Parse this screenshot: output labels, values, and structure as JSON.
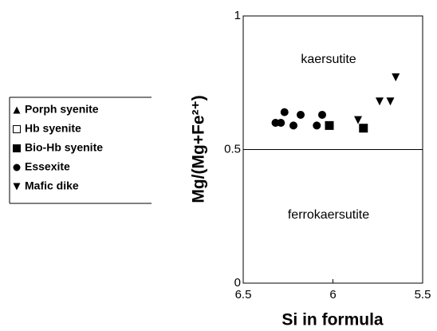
{
  "chart_data": {
    "type": "scatter",
    "xlabel": "Si in formula",
    "ylabel": "Mg/(Mg+Fe²⁺)",
    "annotations": [
      "kaersutite",
      "ferrokaersutite"
    ],
    "reference_line": 0.5,
    "xlim": [
      6.5,
      5.5
    ],
    "xticks": [
      6.5,
      6,
      5.5
    ],
    "ylim": [
      0,
      1
    ],
    "yticks": [
      0,
      0.5,
      1
    ],
    "series": [
      {
        "name": "Porph syenite",
        "color": "#000000",
        "marker": "triangle-up",
        "x": [],
        "y": []
      },
      {
        "name": "Hb syenite",
        "color": "#000000",
        "marker": "square-open",
        "x": [],
        "y": []
      },
      {
        "name": "Bio-Hb syenite",
        "color": "#000000",
        "marker": "square",
        "x": [
          6.02,
          5.83
        ],
        "y": [
          0.59,
          0.58
        ]
      },
      {
        "name": "Essexite",
        "color": "#000000",
        "marker": "circle",
        "x": [
          6.32,
          6.29,
          6.27,
          6.22,
          6.18,
          6.09,
          6.06
        ],
        "y": [
          0.6,
          0.6,
          0.64,
          0.59,
          0.63,
          0.59,
          0.63
        ]
      },
      {
        "name": "Mafic dike",
        "color": "#000000",
        "marker": "triangle-down",
        "x": [
          5.86,
          5.74,
          5.68,
          5.65
        ],
        "y": [
          0.61,
          0.68,
          0.68,
          0.77
        ]
      }
    ]
  }
}
